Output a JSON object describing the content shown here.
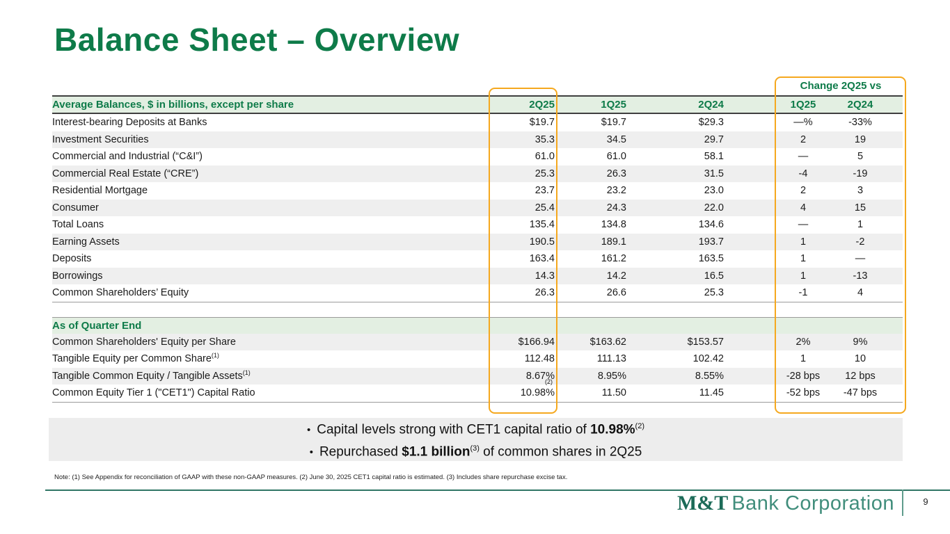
{
  "title": "Balance Sheet – Overview",
  "colors": {
    "brand_green": "#0e7b49",
    "pale_green_band": "#e3efe2",
    "row_stripe_gray": "#efefef",
    "highlight_orange": "#f5a81e",
    "bullet_band_gray": "#ededed",
    "footer_line_green": "#2f7565",
    "logo_dark_green": "#1c6b58",
    "logo_light_green": "#418e7c"
  },
  "table": {
    "header_label": "Average Balances, $ in billions, except per share",
    "period_columns": [
      "2Q25",
      "1Q25",
      "2Q24"
    ],
    "change_header": "Change 2Q25 vs",
    "change_columns": [
      "1Q25",
      "2Q24"
    ],
    "rows": [
      {
        "label": "Interest-bearing Deposits at Banks",
        "values": [
          "$19.7",
          "$19.7",
          "$29.3"
        ],
        "changes": [
          "—%",
          "-33%"
        ]
      },
      {
        "label": "Investment Securities",
        "values": [
          "35.3",
          "34.5",
          "29.7"
        ],
        "changes": [
          "2",
          "19"
        ]
      },
      {
        "label": "Commercial and Industrial (“C&I”)",
        "values": [
          "61.0",
          "61.0",
          "58.1"
        ],
        "changes": [
          "—",
          "5"
        ]
      },
      {
        "label": "Commercial Real Estate (“CRE”)",
        "values": [
          "25.3",
          "26.3",
          "31.5"
        ],
        "changes": [
          "-4",
          "-19"
        ]
      },
      {
        "label": "Residential Mortgage",
        "values": [
          "23.7",
          "23.2",
          "23.0"
        ],
        "changes": [
          "2",
          "3"
        ]
      },
      {
        "label": "Consumer",
        "values": [
          "25.4",
          "24.3",
          "22.0"
        ],
        "changes": [
          "4",
          "15"
        ]
      },
      {
        "label": "Total Loans",
        "values": [
          "135.4",
          "134.8",
          "134.6"
        ],
        "changes": [
          "—",
          "1"
        ]
      },
      {
        "label": "Earning Assets",
        "values": [
          "190.5",
          "189.1",
          "193.7"
        ],
        "changes": [
          "1",
          "-2"
        ]
      },
      {
        "label": "Deposits",
        "values": [
          "163.4",
          "161.2",
          "163.5"
        ],
        "changes": [
          "1",
          "—"
        ]
      },
      {
        "label": "Borrowings",
        "values": [
          "14.3",
          "14.2",
          "16.5"
        ],
        "changes": [
          "1",
          "-13"
        ]
      },
      {
        "label": "Common Shareholders’ Equity",
        "values": [
          "26.3",
          "26.6",
          "25.3"
        ],
        "changes": [
          "-1",
          "4"
        ]
      }
    ],
    "section2": {
      "label": "As of Quarter End",
      "rows": [
        {
          "label": "Common Shareholders' Equity per Share",
          "values": [
            "$166.94",
            "$163.62",
            "$153.57"
          ],
          "changes": [
            "2%",
            "9%"
          ]
        },
        {
          "label": "Tangible Equity per Common Share",
          "label_sup": "(1)",
          "values": [
            "112.48",
            "111.13",
            "102.42"
          ],
          "changes": [
            "1",
            "10"
          ]
        },
        {
          "label": "Tangible Common Equity / Tangible Assets",
          "label_sup": "(1)",
          "values": [
            "8.67%",
            "8.95%",
            "8.55%"
          ],
          "changes": [
            "-28 bps",
            "12 bps"
          ]
        },
        {
          "label": "Common Equity Tier 1 (\"CET1\") Capital Ratio",
          "values": [
            "10.98%",
            "11.50",
            "11.45"
          ],
          "value_sups": [
            "(2)",
            "",
            ""
          ],
          "changes": [
            "-52 bps",
            "-47 bps"
          ]
        }
      ]
    }
  },
  "bullets": [
    {
      "parts": [
        {
          "t": "Capital levels strong with CET1 capital ratio of "
        },
        {
          "t": "10.98%",
          "b": true
        },
        {
          "t": "(2)",
          "sup": true
        }
      ]
    },
    {
      "parts": [
        {
          "t": "Repurchased "
        },
        {
          "t": "$1.1 billion",
          "b": true
        },
        {
          "t": "(3)",
          "sup": true
        },
        {
          "t": " of common shares in 2Q25"
        }
      ]
    }
  ],
  "note": "Note: (1) See Appendix for reconciliation of GAAP with these non-GAAP measures. (2) June 30, 2025 CET1 capital ratio is estimated. (3) Includes share repurchase excise tax.",
  "footer": {
    "logo_bold": "M&T",
    "logo_text": "Bank Corporation",
    "page_number": "9"
  }
}
